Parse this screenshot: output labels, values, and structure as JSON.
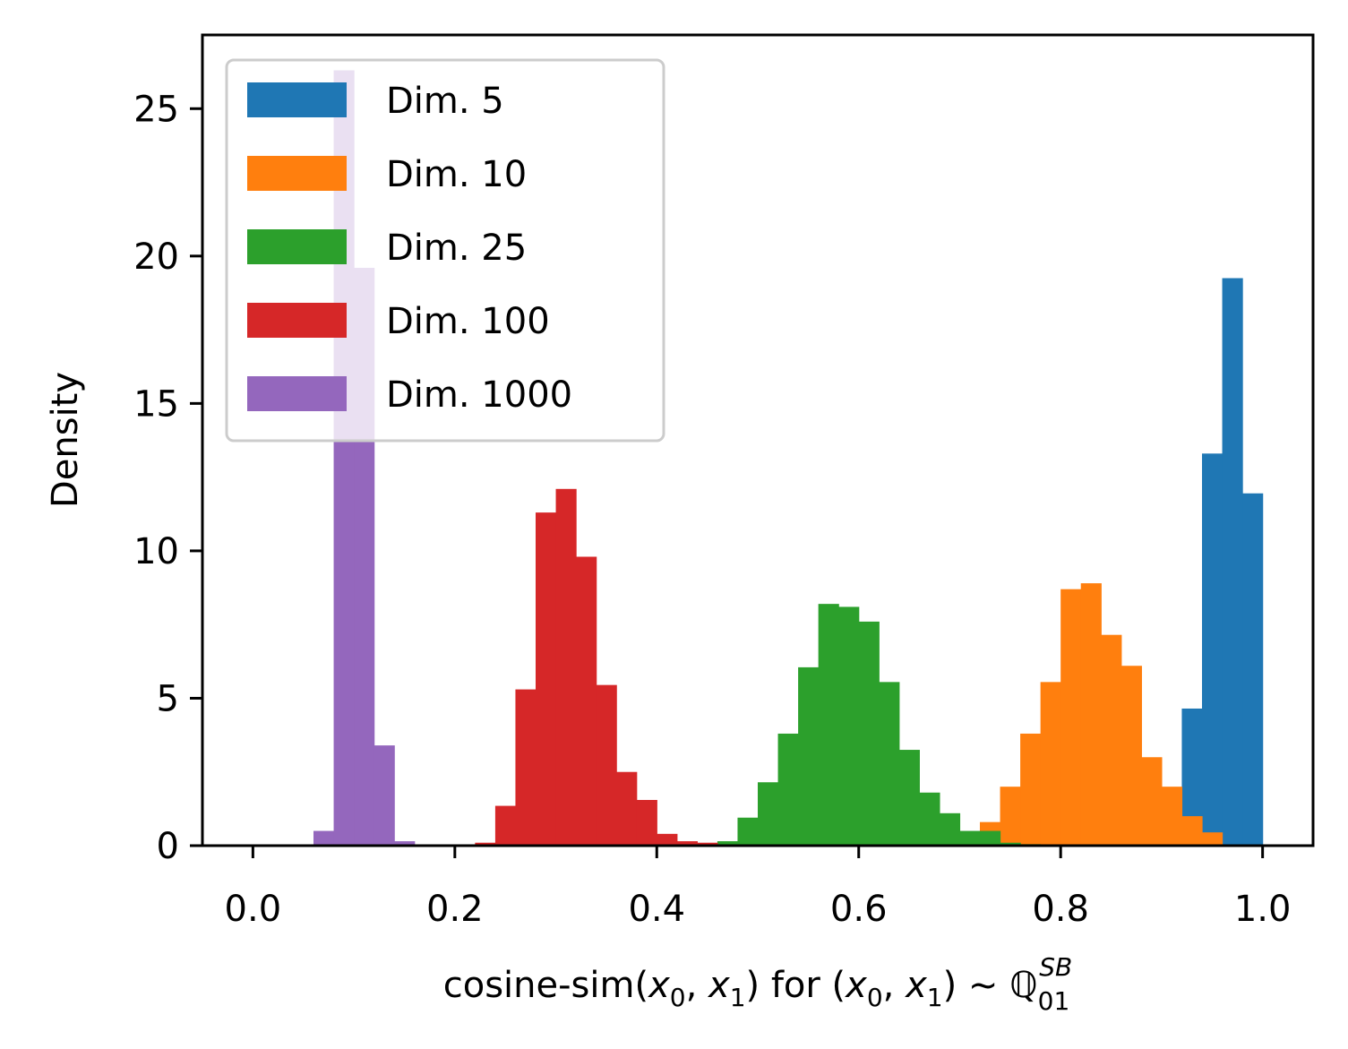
{
  "chart_data": {
    "type": "bar",
    "subtype": "histogram",
    "xlabel": {
      "prefix": "cosine-sim(",
      "mid": ") for (",
      "suffix": ") ~ ",
      "var_x": "x",
      "sub_0": "0",
      "sub_1": "1",
      "comma": ", ",
      "measure": "ℚ",
      "measure_sub": "01",
      "measure_sup": "SB"
    },
    "ylabel": "Density",
    "xlim": [
      -0.05,
      1.05
    ],
    "ylim": [
      0,
      27.5
    ],
    "xticks": [
      0.0,
      0.2,
      0.4,
      0.6,
      0.8,
      1.0
    ],
    "xtick_labels": [
      "0.0",
      "0.2",
      "0.4",
      "0.6",
      "0.8",
      "1.0"
    ],
    "yticks": [
      0,
      5,
      10,
      15,
      20,
      25
    ],
    "ytick_labels": [
      "0",
      "5",
      "10",
      "15",
      "20",
      "25"
    ],
    "bin_width": 0.02,
    "grid": false,
    "legend_position": "upper-left",
    "series": [
      {
        "name": "Dim. 5",
        "color": "#1f77b4",
        "bin_starts": [
          0.92,
          0.94,
          0.96,
          0.98
        ],
        "values": [
          4.65,
          13.3,
          19.25,
          11.95
        ]
      },
      {
        "name": "Dim. 10",
        "color": "#ff7f0e",
        "bin_starts": [
          0.72,
          0.74,
          0.76,
          0.78,
          0.8,
          0.82,
          0.84,
          0.86,
          0.88,
          0.9,
          0.92,
          0.94
        ],
        "values": [
          0.8,
          2.0,
          3.8,
          5.55,
          8.7,
          8.9,
          7.15,
          6.1,
          3.0,
          2.0,
          1.0,
          0.45
        ]
      },
      {
        "name": "Dim. 25",
        "color": "#2ca02c",
        "bin_starts": [
          0.46,
          0.48,
          0.5,
          0.52,
          0.54,
          0.56,
          0.58,
          0.6,
          0.62,
          0.64,
          0.66,
          0.68,
          0.7,
          0.72,
          0.74,
          0.76
        ],
        "values": [
          0.15,
          0.95,
          2.15,
          3.8,
          6.05,
          8.2,
          8.1,
          7.6,
          5.55,
          3.25,
          1.8,
          1.1,
          0.5,
          0.5,
          0.1,
          0.05
        ]
      },
      {
        "name": "Dim. 100",
        "color": "#d62728",
        "bin_starts": [
          0.22,
          0.24,
          0.26,
          0.28,
          0.3,
          0.32,
          0.34,
          0.36,
          0.38,
          0.4,
          0.42,
          0.44
        ],
        "values": [
          0.1,
          1.35,
          5.3,
          11.3,
          12.1,
          9.8,
          5.45,
          2.5,
          1.55,
          0.4,
          0.15,
          0.1
        ]
      },
      {
        "name": "Dim. 1000",
        "color": "#9467bd",
        "bin_starts": [
          0.06,
          0.08,
          0.1,
          0.12,
          0.14
        ],
        "values": [
          0.5,
          26.3,
          19.6,
          3.4,
          0.15
        ]
      }
    ]
  }
}
